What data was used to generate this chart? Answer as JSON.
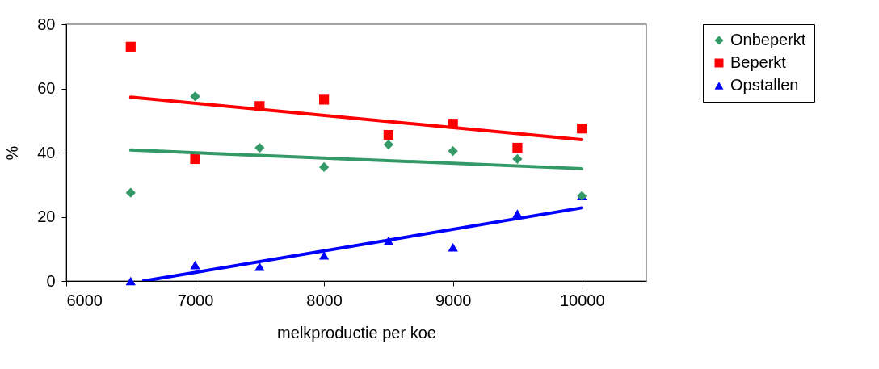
{
  "chart_data": {
    "type": "scatter",
    "xlabel": "melkproductie per koe",
    "ylabel": "%",
    "xlim": [
      6000,
      10500
    ],
    "xticks": [
      6000,
      7000,
      8000,
      9000,
      10000
    ],
    "ylim": [
      0,
      80
    ],
    "yticks": [
      0,
      20,
      40,
      60,
      80
    ],
    "grid": false,
    "legend": "right",
    "series": [
      {
        "name": "Onbeperkt",
        "color": "#339966",
        "marker": "diamond",
        "x": [
          6500,
          7000,
          7500,
          8000,
          8500,
          9000,
          9500,
          10000
        ],
        "values": [
          27.5,
          57.5,
          41.5,
          35.5,
          42.5,
          40.5,
          38,
          26.5
        ]
      },
      {
        "name": "Beperkt",
        "color": "#ff0000",
        "marker": "square",
        "x": [
          6500,
          7000,
          7500,
          8000,
          8500,
          9000,
          9500,
          10000
        ],
        "values": [
          73,
          38,
          54.5,
          56.5,
          45.5,
          49,
          41.5,
          47.5
        ]
      },
      {
        "name": "Opstallen",
        "color": "#0000ff",
        "marker": "triangle",
        "x": [
          6500,
          7000,
          7500,
          8000,
          8500,
          9000,
          9500,
          10000
        ],
        "values": [
          0,
          5,
          4.5,
          8,
          12.5,
          10.5,
          21,
          26.5
        ]
      },
      {
        "type": "line",
        "color": "#339966",
        "x": [
          6500,
          10000
        ],
        "values": [
          40.8,
          35
        ]
      },
      {
        "type": "line",
        "color": "#ff0000",
        "x": [
          6500,
          10000
        ],
        "values": [
          57.3,
          44
        ]
      },
      {
        "type": "line",
        "color": "#0000ff",
        "x": [
          6600,
          10000
        ],
        "values": [
          0,
          22.8
        ]
      }
    ]
  }
}
